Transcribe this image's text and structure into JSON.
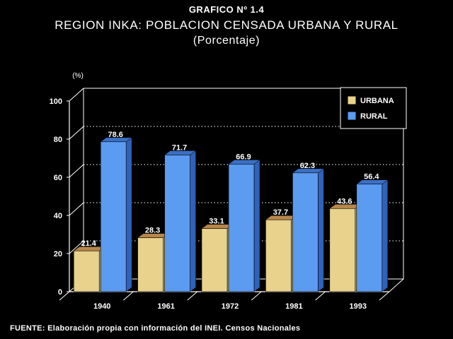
{
  "header": {
    "label": "GRAFICO Nº 1.4",
    "title": "REGION INKA: POBLACION CENSADA URBANA Y RURAL",
    "subtitle": "(Porcentaje)"
  },
  "footer": {
    "source": "FUENTE: Elaboración propia con información del INEI. Censos Nacionales"
  },
  "chart_data": {
    "type": "bar",
    "style": "3d-grouped",
    "categories": [
      "1940",
      "1961",
      "1972",
      "1981",
      "1993"
    ],
    "series": [
      {
        "name": "URBANA",
        "values": [
          21.4,
          28.3,
          33.1,
          37.7,
          43.6
        ],
        "color": "#e8d28c",
        "side_color": "#b8a060",
        "top_color": "#b7864a"
      },
      {
        "name": "RURAL",
        "values": [
          78.6,
          71.7,
          66.9,
          62.3,
          56.4
        ],
        "color": "#5b9bf0",
        "side_color": "#2f62b8",
        "top_color": "#3b6fc4"
      }
    ],
    "ylabel": "(%)",
    "ylim": [
      0,
      100
    ],
    "yticks": [
      0,
      20,
      40,
      60,
      80,
      100
    ],
    "grid": "dotted horizontal",
    "legend": "top-right",
    "background": "#000000",
    "axis_color": "#ffffff"
  }
}
